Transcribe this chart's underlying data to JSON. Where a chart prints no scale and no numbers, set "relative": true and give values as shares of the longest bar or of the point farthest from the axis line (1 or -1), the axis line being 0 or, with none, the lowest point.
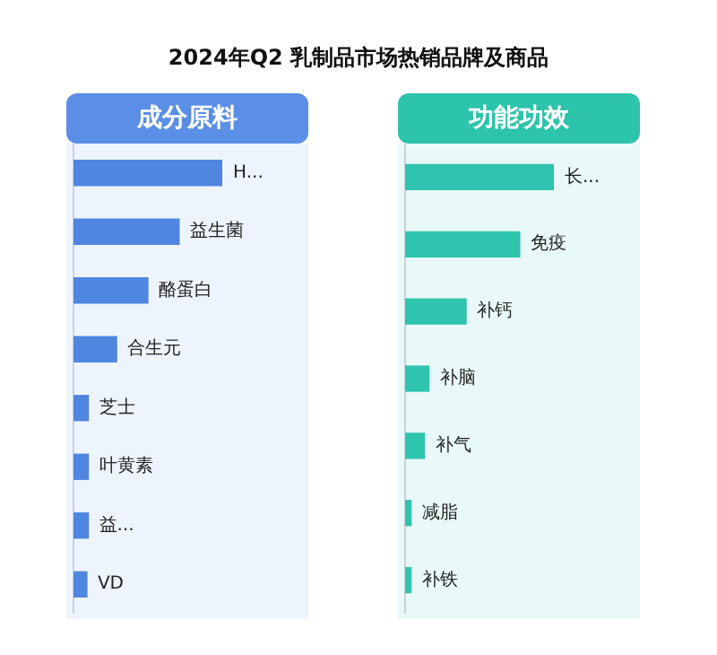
{
  "chart_data": [
    {
      "type": "bar",
      "orientation": "horizontal",
      "relative": true,
      "title": "2024年Q2 乳制品市场热销品牌及商品",
      "subtitle": "成分原料",
      "categories": [
        "H...",
        "益生菌",
        "酪蛋白",
        "合生元",
        "芝士",
        "叶黄素",
        "益...",
        "VD"
      ],
      "values": [
        1,
        0.71,
        0.5,
        0.29,
        0.1,
        0.1,
        0.1,
        0.09
      ],
      "color": "#4f86e0",
      "legend": false
    },
    {
      "type": "bar",
      "orientation": "horizontal",
      "relative": true,
      "subtitle": "功能功效",
      "categories": [
        "长...",
        "免疫",
        "补钙",
        "补脑",
        "补气",
        "减脂",
        "补铁"
      ],
      "values": [
        1,
        0.77,
        0.41,
        0.16,
        0.13,
        0.04,
        0.04
      ],
      "color": "#2ec4ad",
      "legend": false
    }
  ]
}
